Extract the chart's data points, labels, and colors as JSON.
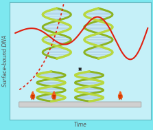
{
  "bg_color": "#7de8f0",
  "box_bg": "#c5f0f8",
  "box_edge": "#60b8c0",
  "text_color": "#666666",
  "ylabel": "Surface-bound DNA",
  "xlabel": "Time",
  "dna_green_light": "#b8d840",
  "dna_green_dark": "#88b010",
  "dna_blue_fill": "#c8e0f0",
  "dna_blue_line": "#90b8d8",
  "pyrene_orange": "#e84808",
  "pyrene_dark": "#c03000",
  "pyrene_body": "#f06020",
  "surface_color": "#d0d0d0",
  "surface_edge": "#a8a8a8",
  "curve_red": "#e02010",
  "arrow_color": "#222222",
  "axis_fontsize": 5.5,
  "label_color": "#555555"
}
